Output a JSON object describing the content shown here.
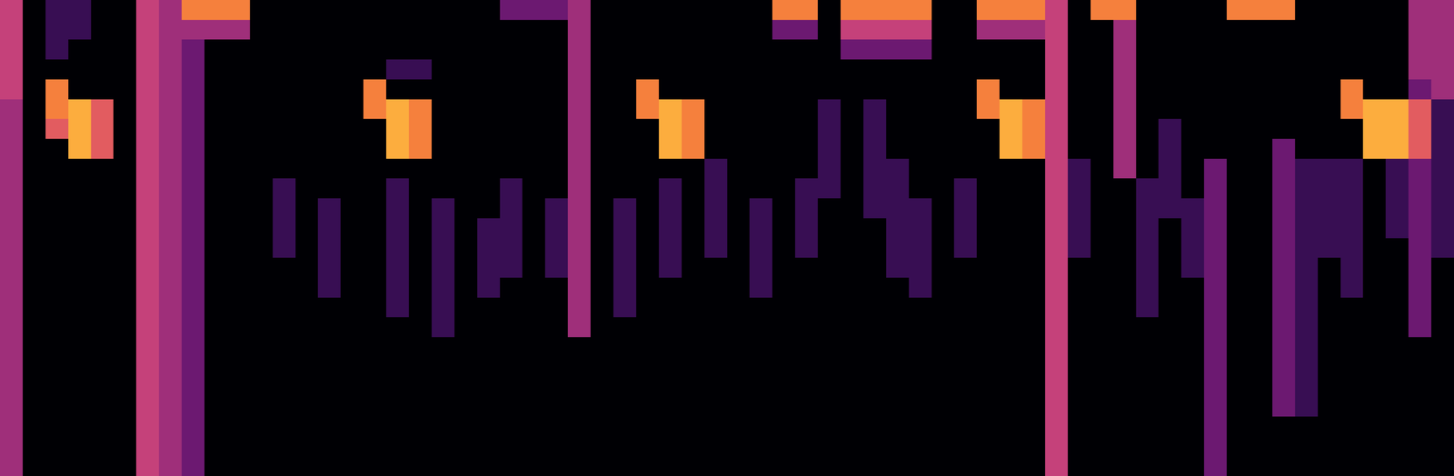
{
  "chart_data": {
    "type": "heatmap",
    "zlim": [
      0,
      9
    ],
    "tick_labels": false,
    "grid": false,
    "cells": [
      [
        5,
        0,
        2,
        2,
        0,
        0,
        5,
        4,
        7,
        7,
        7,
        0,
        0,
        0,
        0,
        0,
        0,
        0,
        0,
        0,
        0,
        0,
        3,
        3,
        3,
        4,
        0,
        0,
        0,
        0,
        0,
        0,
        0,
        0,
        7,
        7,
        0,
        7,
        7,
        7,
        7,
        0,
        0,
        7,
        7,
        7,
        5,
        0,
        7,
        7,
        0,
        0,
        0,
        0,
        7,
        7,
        7,
        0,
        0,
        0,
        0,
        0,
        4,
        4
      ],
      [
        5,
        0,
        2,
        2,
        0,
        0,
        5,
        4,
        4,
        4,
        4,
        0,
        0,
        0,
        0,
        0,
        0,
        0,
        0,
        0,
        0,
        0,
        0,
        0,
        0,
        4,
        0,
        0,
        0,
        0,
        0,
        0,
        0,
        0,
        3,
        3,
        0,
        5,
        5,
        5,
        5,
        0,
        0,
        4,
        4,
        4,
        5,
        0,
        0,
        4,
        0,
        0,
        0,
        0,
        0,
        0,
        0,
        0,
        0,
        0,
        0,
        0,
        4,
        4
      ],
      [
        5,
        0,
        2,
        0,
        0,
        0,
        5,
        4,
        3,
        0,
        0,
        0,
        0,
        0,
        0,
        0,
        0,
        0,
        0,
        0,
        0,
        0,
        0,
        0,
        0,
        4,
        0,
        0,
        0,
        0,
        0,
        0,
        0,
        0,
        0,
        0,
        0,
        3,
        3,
        3,
        3,
        0,
        0,
        0,
        0,
        0,
        5,
        0,
        0,
        4,
        0,
        0,
        0,
        0,
        0,
        0,
        0,
        0,
        0,
        0,
        0,
        0,
        4,
        4
      ],
      [
        5,
        0,
        0,
        0,
        0,
        0,
        5,
        4,
        3,
        0,
        0,
        0,
        0,
        0,
        0,
        0,
        0,
        2,
        2,
        0,
        0,
        0,
        0,
        0,
        0,
        4,
        0,
        0,
        0,
        0,
        0,
        0,
        0,
        0,
        0,
        0,
        0,
        0,
        0,
        0,
        0,
        0,
        0,
        0,
        0,
        0,
        5,
        0,
        0,
        4,
        0,
        0,
        0,
        0,
        0,
        0,
        0,
        0,
        0,
        0,
        0,
        0,
        4,
        4
      ],
      [
        5,
        0,
        7,
        0,
        0,
        0,
        5,
        4,
        3,
        0,
        0,
        0,
        0,
        0,
        0,
        0,
        7,
        0,
        0,
        0,
        0,
        0,
        0,
        0,
        0,
        4,
        0,
        0,
        7,
        0,
        0,
        0,
        0,
        0,
        0,
        0,
        0,
        0,
        0,
        0,
        0,
        0,
        0,
        7,
        0,
        0,
        5,
        0,
        0,
        4,
        0,
        0,
        0,
        0,
        0,
        0,
        0,
        0,
        0,
        7,
        0,
        0,
        3,
        4
      ],
      [
        4,
        0,
        7,
        8,
        6,
        0,
        5,
        4,
        3,
        0,
        0,
        0,
        0,
        0,
        0,
        0,
        7,
        8,
        7,
        0,
        0,
        0,
        0,
        0,
        0,
        4,
        0,
        0,
        7,
        8,
        7,
        0,
        0,
        0,
        0,
        0,
        2,
        0,
        2,
        0,
        0,
        0,
        0,
        7,
        8,
        7,
        5,
        0,
        0,
        4,
        0,
        0,
        0,
        0,
        0,
        0,
        0,
        0,
        0,
        7,
        8,
        8,
        6,
        2
      ],
      [
        4,
        0,
        6,
        8,
        6,
        0,
        5,
        4,
        3,
        0,
        0,
        0,
        0,
        0,
        0,
        0,
        0,
        8,
        7,
        0,
        0,
        0,
        0,
        0,
        0,
        4,
        0,
        0,
        0,
        8,
        7,
        0,
        0,
        0,
        0,
        0,
        2,
        0,
        2,
        0,
        0,
        0,
        0,
        0,
        8,
        7,
        5,
        0,
        0,
        4,
        0,
        2,
        0,
        0,
        0,
        0,
        0,
        0,
        0,
        0,
        8,
        8,
        6,
        2
      ],
      [
        4,
        0,
        0,
        8,
        6,
        0,
        5,
        4,
        3,
        0,
        0,
        0,
        0,
        0,
        0,
        0,
        0,
        8,
        7,
        0,
        0,
        0,
        0,
        0,
        0,
        4,
        0,
        0,
        0,
        8,
        7,
        0,
        0,
        0,
        0,
        0,
        2,
        0,
        2,
        0,
        0,
        0,
        0,
        0,
        8,
        7,
        5,
        0,
        0,
        4,
        0,
        2,
        0,
        0,
        0,
        0,
        3,
        0,
        0,
        0,
        8,
        8,
        6,
        2
      ],
      [
        4,
        0,
        0,
        0,
        0,
        0,
        5,
        4,
        3,
        0,
        0,
        0,
        0,
        0,
        0,
        0,
        0,
        0,
        0,
        0,
        0,
        0,
        0,
        0,
        0,
        4,
        0,
        0,
        0,
        0,
        0,
        2,
        0,
        0,
        0,
        0,
        2,
        0,
        2,
        2,
        0,
        0,
        0,
        0,
        0,
        0,
        5,
        2,
        0,
        4,
        0,
        2,
        0,
        3,
        0,
        0,
        3,
        2,
        2,
        2,
        0,
        2,
        3,
        2
      ],
      [
        4,
        0,
        0,
        0,
        0,
        0,
        5,
        4,
        3,
        0,
        0,
        0,
        2,
        0,
        0,
        0,
        0,
        2,
        0,
        0,
        0,
        0,
        2,
        0,
        0,
        4,
        0,
        0,
        0,
        2,
        0,
        2,
        0,
        0,
        0,
        2,
        2,
        0,
        2,
        2,
        0,
        0,
        2,
        0,
        0,
        0,
        5,
        2,
        0,
        0,
        2,
        2,
        0,
        3,
        0,
        0,
        3,
        2,
        2,
        2,
        0,
        2,
        3,
        2
      ],
      [
        4,
        0,
        0,
        0,
        0,
        0,
        5,
        4,
        3,
        0,
        0,
        0,
        2,
        0,
        2,
        0,
        0,
        2,
        0,
        2,
        0,
        0,
        2,
        0,
        2,
        4,
        0,
        2,
        0,
        2,
        0,
        2,
        0,
        2,
        0,
        2,
        0,
        0,
        2,
        2,
        2,
        0,
        2,
        0,
        0,
        0,
        5,
        2,
        0,
        0,
        2,
        2,
        2,
        3,
        0,
        0,
        3,
        2,
        2,
        2,
        0,
        2,
        3,
        2
      ],
      [
        4,
        0,
        0,
        0,
        0,
        0,
        5,
        4,
        3,
        0,
        0,
        0,
        2,
        0,
        2,
        0,
        0,
        2,
        0,
        2,
        0,
        2,
        2,
        0,
        2,
        4,
        0,
        2,
        0,
        2,
        0,
        2,
        0,
        2,
        0,
        2,
        0,
        0,
        0,
        2,
        2,
        0,
        2,
        0,
        0,
        0,
        5,
        2,
        0,
        0,
        2,
        0,
        2,
        3,
        0,
        0,
        3,
        2,
        2,
        2,
        0,
        2,
        3,
        2
      ],
      [
        4,
        0,
        0,
        0,
        0,
        0,
        5,
        4,
        3,
        0,
        0,
        0,
        2,
        0,
        2,
        0,
        0,
        2,
        0,
        2,
        0,
        2,
        2,
        0,
        2,
        4,
        0,
        2,
        0,
        2,
        0,
        2,
        0,
        2,
        0,
        2,
        0,
        0,
        0,
        2,
        2,
        0,
        2,
        0,
        0,
        0,
        5,
        2,
        0,
        0,
        2,
        0,
        2,
        3,
        0,
        0,
        3,
        2,
        2,
        2,
        0,
        0,
        3,
        2
      ],
      [
        4,
        0,
        0,
        0,
        0,
        0,
        5,
        4,
        3,
        0,
        0,
        0,
        0,
        0,
        2,
        0,
        0,
        2,
        0,
        2,
        0,
        2,
        2,
        0,
        2,
        4,
        0,
        2,
        0,
        2,
        0,
        0,
        0,
        2,
        0,
        0,
        0,
        0,
        0,
        2,
        2,
        0,
        0,
        0,
        0,
        0,
        5,
        0,
        0,
        0,
        2,
        0,
        2,
        3,
        0,
        0,
        3,
        2,
        0,
        2,
        0,
        0,
        3,
        0
      ],
      [
        4,
        0,
        0,
        0,
        0,
        0,
        5,
        4,
        3,
        0,
        0,
        0,
        0,
        0,
        2,
        0,
        0,
        2,
        0,
        2,
        0,
        2,
        0,
        0,
        0,
        4,
        0,
        2,
        0,
        0,
        0,
        0,
        0,
        2,
        0,
        0,
        0,
        0,
        0,
        0,
        2,
        0,
        0,
        0,
        0,
        0,
        5,
        0,
        0,
        0,
        2,
        0,
        0,
        3,
        0,
        0,
        3,
        2,
        0,
        2,
        0,
        0,
        3,
        0
      ],
      [
        4,
        0,
        0,
        0,
        0,
        0,
        5,
        4,
        3,
        0,
        0,
        0,
        0,
        0,
        0,
        0,
        0,
        2,
        0,
        2,
        0,
        0,
        0,
        0,
        0,
        4,
        0,
        2,
        0,
        0,
        0,
        0,
        0,
        0,
        0,
        0,
        0,
        0,
        0,
        0,
        0,
        0,
        0,
        0,
        0,
        0,
        5,
        0,
        0,
        0,
        2,
        0,
        0,
        3,
        0,
        0,
        3,
        2,
        0,
        0,
        0,
        0,
        3,
        0
      ],
      [
        4,
        0,
        0,
        0,
        0,
        0,
        5,
        4,
        3,
        0,
        0,
        0,
        0,
        0,
        0,
        0,
        0,
        0,
        0,
        2,
        0,
        0,
        0,
        0,
        0,
        4,
        0,
        0,
        0,
        0,
        0,
        0,
        0,
        0,
        0,
        0,
        0,
        0,
        0,
        0,
        0,
        0,
        0,
        0,
        0,
        0,
        5,
        0,
        0,
        0,
        0,
        0,
        0,
        3,
        0,
        0,
        3,
        2,
        0,
        0,
        0,
        0,
        3,
        0
      ],
      [
        4,
        0,
        0,
        0,
        0,
        0,
        5,
        4,
        3,
        0,
        0,
        0,
        0,
        0,
        0,
        0,
        0,
        0,
        0,
        0,
        0,
        0,
        0,
        0,
        0,
        0,
        0,
        0,
        0,
        0,
        0,
        0,
        0,
        0,
        0,
        0,
        0,
        0,
        0,
        0,
        0,
        0,
        0,
        0,
        0,
        0,
        5,
        0,
        0,
        0,
        0,
        0,
        0,
        3,
        0,
        0,
        3,
        2,
        0,
        0,
        0,
        0,
        0,
        0
      ],
      [
        4,
        0,
        0,
        0,
        0,
        0,
        5,
        4,
        3,
        0,
        0,
        0,
        0,
        0,
        0,
        0,
        0,
        0,
        0,
        0,
        0,
        0,
        0,
        0,
        0,
        0,
        0,
        0,
        0,
        0,
        0,
        0,
        0,
        0,
        0,
        0,
        0,
        0,
        0,
        0,
        0,
        0,
        0,
        0,
        0,
        0,
        5,
        0,
        0,
        0,
        0,
        0,
        0,
        3,
        0,
        0,
        3,
        2,
        0,
        0,
        0,
        0,
        0,
        0
      ],
      [
        4,
        0,
        0,
        0,
        0,
        0,
        5,
        4,
        3,
        0,
        0,
        0,
        0,
        0,
        0,
        0,
        0,
        0,
        0,
        0,
        0,
        0,
        0,
        0,
        0,
        0,
        0,
        0,
        0,
        0,
        0,
        0,
        0,
        0,
        0,
        0,
        0,
        0,
        0,
        0,
        0,
        0,
        0,
        0,
        0,
        0,
        5,
        0,
        0,
        0,
        0,
        0,
        0,
        3,
        0,
        0,
        3,
        2,
        0,
        0,
        0,
        0,
        0,
        0
      ],
      [
        4,
        0,
        0,
        0,
        0,
        0,
        5,
        4,
        3,
        0,
        0,
        0,
        0,
        0,
        0,
        0,
        0,
        0,
        0,
        0,
        0,
        0,
        0,
        0,
        0,
        0,
        0,
        0,
        0,
        0,
        0,
        0,
        0,
        0,
        0,
        0,
        0,
        0,
        0,
        0,
        0,
        0,
        0,
        0,
        0,
        0,
        5,
        0,
        0,
        0,
        0,
        0,
        0,
        3,
        0,
        0,
        3,
        2,
        0,
        0,
        0,
        0,
        0,
        0
      ],
      [
        4,
        0,
        0,
        0,
        0,
        0,
        5,
        4,
        3,
        0,
        0,
        0,
        0,
        0,
        0,
        0,
        0,
        0,
        0,
        0,
        0,
        0,
        0,
        0,
        0,
        0,
        0,
        0,
        0,
        0,
        0,
        0,
        0,
        0,
        0,
        0,
        0,
        0,
        0,
        0,
        0,
        0,
        0,
        0,
        0,
        0,
        5,
        0,
        0,
        0,
        0,
        0,
        0,
        3,
        0,
        0,
        0,
        0,
        0,
        0,
        0,
        0,
        0,
        0
      ],
      [
        4,
        0,
        0,
        0,
        0,
        0,
        5,
        4,
        3,
        0,
        0,
        0,
        0,
        0,
        0,
        0,
        0,
        0,
        0,
        0,
        0,
        0,
        0,
        0,
        0,
        0,
        0,
        0,
        0,
        0,
        0,
        0,
        0,
        0,
        0,
        0,
        0,
        0,
        0,
        0,
        0,
        0,
        0,
        0,
        0,
        0,
        5,
        0,
        0,
        0,
        0,
        0,
        0,
        3,
        0,
        0,
        0,
        0,
        0,
        0,
        0,
        0,
        0,
        0
      ],
      [
        4,
        0,
        0,
        0,
        0,
        0,
        5,
        4,
        3,
        0,
        0,
        0,
        0,
        0,
        0,
        0,
        0,
        0,
        0,
        0,
        0,
        0,
        0,
        0,
        0,
        0,
        0,
        0,
        0,
        0,
        0,
        0,
        0,
        0,
        0,
        0,
        0,
        0,
        0,
        0,
        0,
        0,
        0,
        0,
        0,
        0,
        5,
        0,
        0,
        0,
        0,
        0,
        0,
        3,
        0,
        0,
        0,
        0,
        0,
        0,
        0,
        0,
        0,
        0
      ]
    ]
  }
}
